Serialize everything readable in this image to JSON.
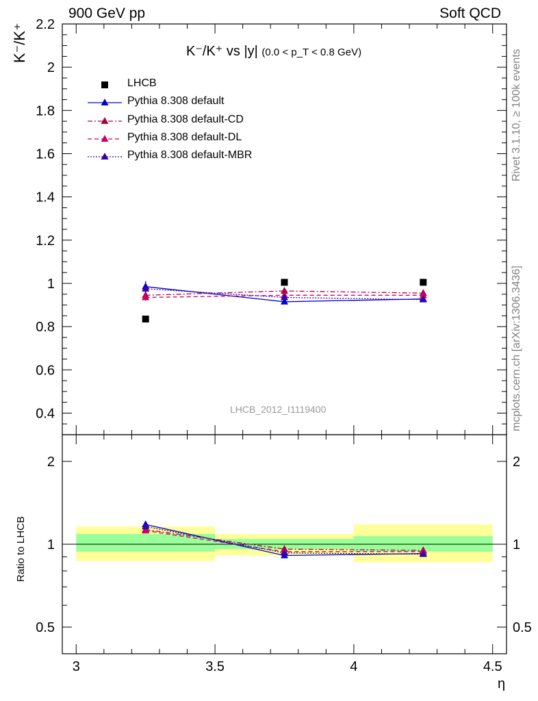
{
  "header": {
    "left": "900 GeV pp",
    "right": "Soft QCD"
  },
  "side_text": {
    "top": "Rivet 3.1.10, ≥ 100k events",
    "bottom": "mcplots.cern.ch [arXiv:1306.3436]"
  },
  "plot_title": {
    "main": "K⁻/K⁺ vs |y|",
    "cut": "(0.0 < p_T < 0.8 GeV)"
  },
  "watermark": "LHCB_2012_I1119400",
  "main_ylabel": "K⁻/K⁺",
  "ratio_ylabel": "Ratio to LHCB",
  "xlabel": "η",
  "chart_data": [
    {
      "type": "scatter",
      "panel": "main",
      "xlim": [
        2.95,
        4.55
      ],
      "ylim": [
        0.3,
        2.2
      ],
      "x_ticks": [
        3,
        3.5,
        4,
        4.5
      ],
      "x_tick_labels": [
        "3",
        "3.5",
        "4",
        "4.5"
      ],
      "y_ticks": [
        0.4,
        0.6,
        0.8,
        1,
        1.2,
        1.4,
        1.6,
        1.8,
        2,
        2.2
      ],
      "y_tick_labels": [
        "0.4",
        "0.6",
        "0.8",
        "1",
        "1.2",
        "1.4",
        "1.6",
        "1.8",
        "2",
        "2.2"
      ],
      "x": [
        3.25,
        3.75,
        4.25
      ],
      "series": [
        {
          "name": "LHCB",
          "values": [
            0.835,
            1.005,
            1.005
          ],
          "color": "#000000",
          "style": "marker-square"
        },
        {
          "name": "Pythia 8.308 default",
          "values": [
            0.985,
            0.915,
            0.928
          ],
          "errors": [
            0.025,
            0.01,
            0.01
          ],
          "color": "#0000cc",
          "style": "solid"
        },
        {
          "name": "Pythia 8.308 default-CD",
          "values": [
            0.945,
            0.965,
            0.955
          ],
          "errors": [
            0.015,
            0.01,
            0.01
          ],
          "color": "#aa0044",
          "style": "dashdot"
        },
        {
          "name": "Pythia 8.308 default-DL",
          "values": [
            0.935,
            0.945,
            0.945
          ],
          "errors": [
            0.015,
            0.01,
            0.01
          ],
          "color": "#cc0066",
          "style": "dashed"
        },
        {
          "name": "Pythia 8.308 default-MBR",
          "values": [
            0.975,
            0.935,
            0.925
          ],
          "errors": [
            0.02,
            0.01,
            0.01
          ],
          "color": "#3300aa",
          "style": "dotted"
        }
      ],
      "legend_position": "top-left",
      "grid": false
    },
    {
      "type": "scatter",
      "panel": "ratio",
      "xlim": [
        2.95,
        4.55
      ],
      "ylim": [
        0.4,
        2.5
      ],
      "log_y": true,
      "y_ticks": [
        0.5,
        1,
        2
      ],
      "y_tick_labels": [
        "0.5",
        "1",
        "2"
      ],
      "x": [
        3.25,
        3.75,
        4.25
      ],
      "bands": [
        {
          "x_range": [
            3.0,
            3.5
          ],
          "inner": [
            0.94,
            1.09
          ],
          "outer": [
            0.87,
            1.16
          ]
        },
        {
          "x_range": [
            3.5,
            4.0
          ],
          "inner": [
            0.96,
            1.045
          ],
          "outer": [
            0.91,
            1.09
          ]
        },
        {
          "x_range": [
            4.0,
            4.5
          ],
          "inner": [
            0.94,
            1.07
          ],
          "outer": [
            0.86,
            1.18
          ]
        }
      ],
      "series": [
        {
          "name": "Pythia 8.308 default",
          "values": [
            1.18,
            0.91,
            0.925
          ],
          "color": "#0000cc",
          "style": "solid"
        },
        {
          "name": "Pythia 8.308 default-CD",
          "values": [
            1.13,
            0.96,
            0.95
          ],
          "color": "#aa0044",
          "style": "dashdot"
        },
        {
          "name": "Pythia 8.308 default-DL",
          "values": [
            1.12,
            0.94,
            0.94
          ],
          "color": "#cc0066",
          "style": "dashed"
        },
        {
          "name": "Pythia 8.308 default-MBR",
          "values": [
            1.16,
            0.93,
            0.92
          ],
          "color": "#3300aa",
          "style": "dotted"
        }
      ],
      "reference_line": 1
    }
  ]
}
